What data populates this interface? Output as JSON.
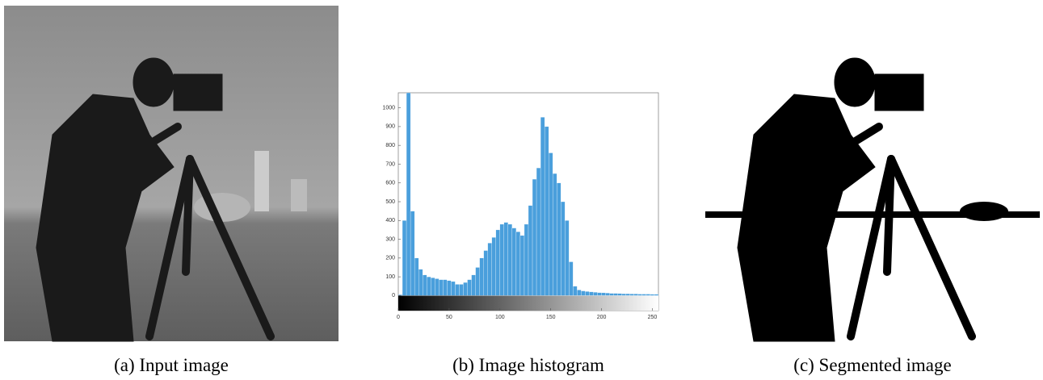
{
  "captions": [
    "(a) Input image",
    "(b) Image histogram",
    "(c) Segmented image"
  ],
  "chart_data": {
    "type": "histogram",
    "bins": [
      0,
      4,
      8,
      12,
      16,
      20,
      24,
      28,
      32,
      36,
      40,
      44,
      48,
      52,
      56,
      60,
      64,
      68,
      72,
      76,
      80,
      84,
      88,
      92,
      96,
      100,
      104,
      108,
      112,
      116,
      120,
      124,
      128,
      132,
      136,
      140,
      144,
      148,
      152,
      156,
      160,
      164,
      168,
      172,
      176,
      180,
      184,
      188,
      192,
      196,
      200,
      204,
      208,
      212,
      216,
      220,
      224,
      228,
      232,
      236,
      240,
      244,
      248,
      252,
      256
    ],
    "values": [
      5,
      400,
      1080,
      450,
      200,
      140,
      110,
      100,
      95,
      90,
      85,
      85,
      80,
      75,
      60,
      60,
      70,
      85,
      110,
      150,
      200,
      240,
      280,
      310,
      350,
      380,
      390,
      380,
      360,
      340,
      320,
      380,
      480,
      620,
      680,
      950,
      900,
      760,
      650,
      600,
      500,
      400,
      180,
      50,
      30,
      25,
      22,
      20,
      18,
      16,
      15,
      14,
      12,
      12,
      11,
      10,
      10,
      9,
      9,
      8,
      8,
      8,
      7,
      7
    ],
    "color": "#4a9fdc",
    "xlim": [
      0,
      256
    ],
    "ylim": [
      -80,
      1080
    ],
    "xticks": [
      0,
      50,
      100,
      150,
      200,
      250
    ],
    "yticks": [
      0,
      100,
      200,
      300,
      400,
      500,
      600,
      700,
      800,
      900,
      1000
    ],
    "grid": false
  }
}
